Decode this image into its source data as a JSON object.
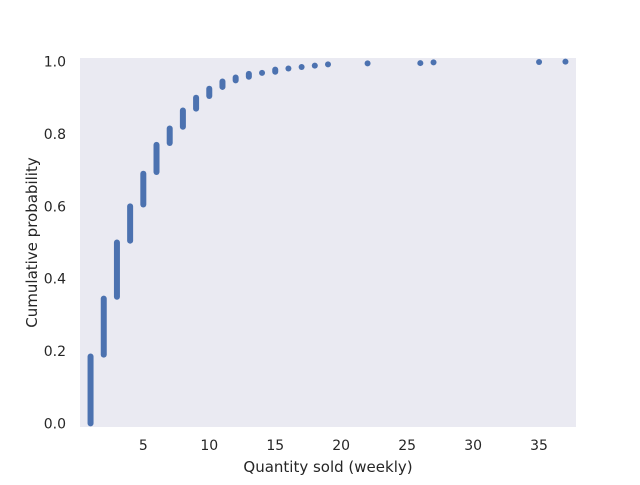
{
  "chart_data": {
    "type": "scatter",
    "title": "",
    "xlabel": "Quantity sold (weekly)",
    "ylabel": "Cumulative probability",
    "xlim": [
      0.2,
      37.8
    ],
    "ylim": [
      -0.01,
      1.01
    ],
    "xticks": [
      5,
      10,
      15,
      20,
      25,
      30,
      35
    ],
    "yticks": [
      0.0,
      0.2,
      0.4,
      0.6,
      0.8,
      1.0
    ],
    "xtick_labels": [
      "5",
      "10",
      "15",
      "20",
      "25",
      "30",
      "35"
    ],
    "ytick_labels": [
      "0.0",
      "0.2",
      "0.4",
      "0.6",
      "0.8",
      "1.0"
    ],
    "grid": false,
    "background_color": "#eaeaf2",
    "marker_color": "#4c72b0",
    "segments": [
      {
        "x": 1,
        "y_from": 0.0,
        "y_to": 0.185
      },
      {
        "x": 2,
        "y_from": 0.19,
        "y_to": 0.345
      },
      {
        "x": 3,
        "y_from": 0.35,
        "y_to": 0.5
      },
      {
        "x": 4,
        "y_from": 0.505,
        "y_to": 0.6
      },
      {
        "x": 5,
        "y_from": 0.605,
        "y_to": 0.69
      },
      {
        "x": 6,
        "y_from": 0.695,
        "y_to": 0.77
      },
      {
        "x": 7,
        "y_from": 0.775,
        "y_to": 0.815
      },
      {
        "x": 8,
        "y_from": 0.82,
        "y_to": 0.865
      },
      {
        "x": 9,
        "y_from": 0.87,
        "y_to": 0.9
      },
      {
        "x": 10,
        "y_from": 0.905,
        "y_to": 0.925
      },
      {
        "x": 11,
        "y_from": 0.93,
        "y_to": 0.945
      },
      {
        "x": 12,
        "y_from": 0.948,
        "y_to": 0.956
      },
      {
        "x": 13,
        "y_from": 0.958,
        "y_to": 0.966
      },
      {
        "x": 14,
        "y_from": 0.968,
        "y_to": 0.97
      },
      {
        "x": 15,
        "y_from": 0.972,
        "y_to": 0.978
      },
      {
        "x": 16,
        "y_from": 0.98,
        "y_to": 0.982
      },
      {
        "x": 17,
        "y_from": 0.984,
        "y_to": 0.986
      },
      {
        "x": 18,
        "y_from": 0.988,
        "y_to": 0.99
      },
      {
        "x": 19,
        "y_from": 0.992,
        "y_to": 0.993
      },
      {
        "x": 22,
        "y_from": 0.995,
        "y_to": 0.995
      },
      {
        "x": 26,
        "y_from": 0.996,
        "y_to": 0.996
      },
      {
        "x": 27,
        "y_from": 0.998,
        "y_to": 0.998
      },
      {
        "x": 35,
        "y_from": 0.999,
        "y_to": 0.999
      },
      {
        "x": 37,
        "y_from": 1.0,
        "y_to": 1.0
      }
    ]
  }
}
